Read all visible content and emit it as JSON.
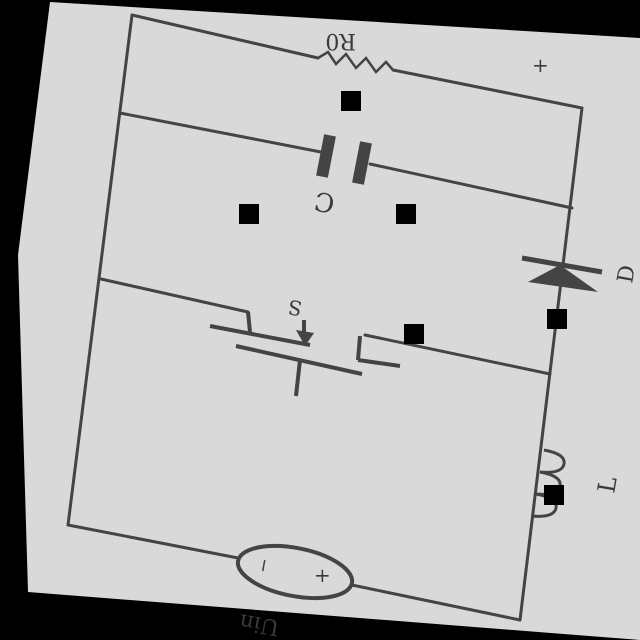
{
  "labels": {
    "load": "R0",
    "capacitor": "C",
    "switch": "S",
    "diode": "D",
    "inductor": "L",
    "source": "Uin",
    "source_minus": "−",
    "source_plus": "+",
    "load_plus": "+"
  },
  "colors": {
    "background": "#000000",
    "paper": "#d9d9d9",
    "ink": "#444444",
    "marker": "#000000"
  }
}
